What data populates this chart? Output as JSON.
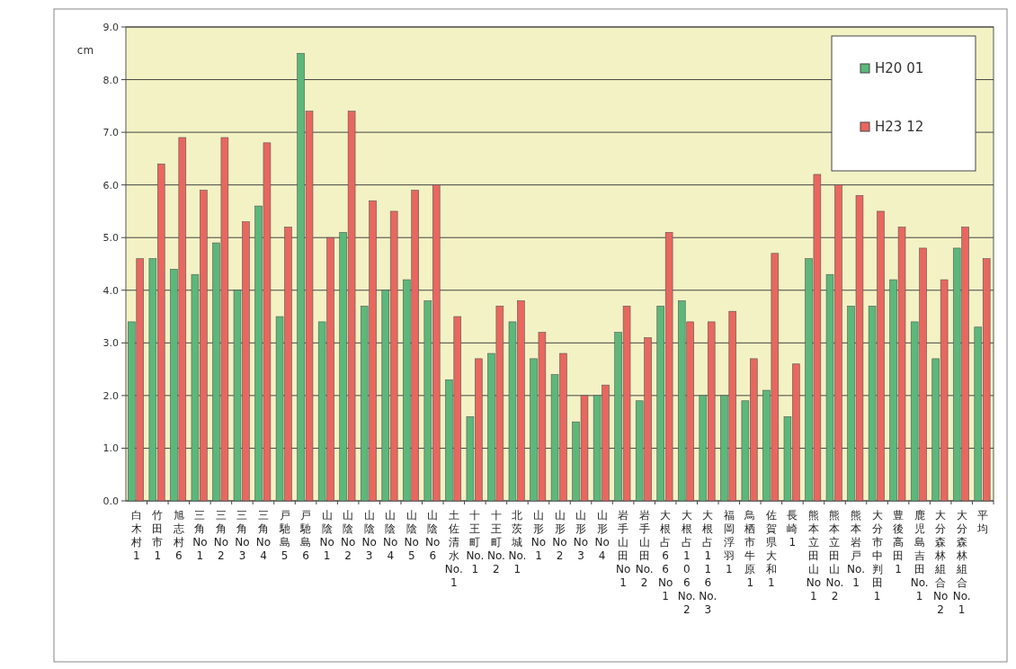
{
  "chart_data": {
    "type": "bar",
    "ylabel": "cm",
    "legend": "top right",
    "grid": "y",
    "categories": [
      "白木村1",
      "竹田市1",
      "旭志村6",
      "三角No1",
      "三角No2",
      "三角No3",
      "三角No4",
      "戸馳島5",
      "戸馳島6",
      "山陰No1",
      "山陰No2",
      "山陰No3",
      "山陰No4",
      "山陰No5",
      "山陰No6",
      "土佐清水No.1",
      "十王町No.1",
      "十王町No.2",
      "北茨城No.1",
      "山形No1",
      "山形No2",
      "山形No3",
      "山形No4",
      "岩手山田No1",
      "岩手山田No.2",
      "大根占66No1",
      "大根占106No.2",
      "大根占116No.3",
      "福岡浮羽1",
      "鳥栖市牛原1",
      "佐賀県大和1",
      "長崎1",
      "熊本立田山No1",
      "熊本立田山No.2",
      "熊本岩戸No.1",
      "大分市中判田1",
      "豊後高田1",
      "鹿児島吉田No.1",
      "大分森林組合No2",
      "大分森林組合No.1",
      "平均"
    ],
    "series": [
      {
        "name": "H20 01",
        "color": "#5cb87a",
        "values": [
          3.4,
          4.6,
          4.4,
          4.3,
          4.9,
          4.0,
          5.6,
          3.5,
          8.5,
          3.4,
          5.1,
          3.7,
          4.0,
          4.2,
          3.8,
          2.3,
          1.6,
          2.8,
          3.4,
          2.7,
          2.4,
          1.5,
          2.0,
          3.2,
          1.9,
          3.7,
          3.8,
          2.0,
          2.0,
          1.9,
          2.1,
          1.6,
          4.6,
          4.3,
          3.7,
          3.7,
          4.2,
          3.4,
          2.7,
          4.8,
          3.3
        ]
      },
      {
        "name": "H23 12",
        "color": "#e8675f",
        "values": [
          4.6,
          6.4,
          6.9,
          5.9,
          6.9,
          5.3,
          6.8,
          5.2,
          7.4,
          5.0,
          7.4,
          5.7,
          5.5,
          5.9,
          6.0,
          3.5,
          2.7,
          3.7,
          3.8,
          3.2,
          2.8,
          2.0,
          2.2,
          3.7,
          3.1,
          5.1,
          3.4,
          3.4,
          3.6,
          2.7,
          4.7,
          2.6,
          6.2,
          6.0,
          5.8,
          5.5,
          5.2,
          4.8,
          4.2,
          5.2,
          4.6
        ]
      }
    ],
    "ylim": [
      0,
      9
    ],
    "yticks": [
      {
        "value": 0,
        "label": "0.0"
      },
      {
        "value": 1,
        "label": "1.0"
      },
      {
        "value": 2,
        "label": "2.0"
      },
      {
        "value": 3,
        "label": "3.0"
      },
      {
        "value": 4,
        "label": "4.0"
      },
      {
        "value": 5,
        "label": "5.0"
      },
      {
        "value": 6,
        "label": "6.0"
      },
      {
        "value": 7,
        "label": "7.0"
      },
      {
        "value": 8,
        "label": "8.0"
      },
      {
        "value": 9,
        "label": "9.0"
      }
    ]
  }
}
